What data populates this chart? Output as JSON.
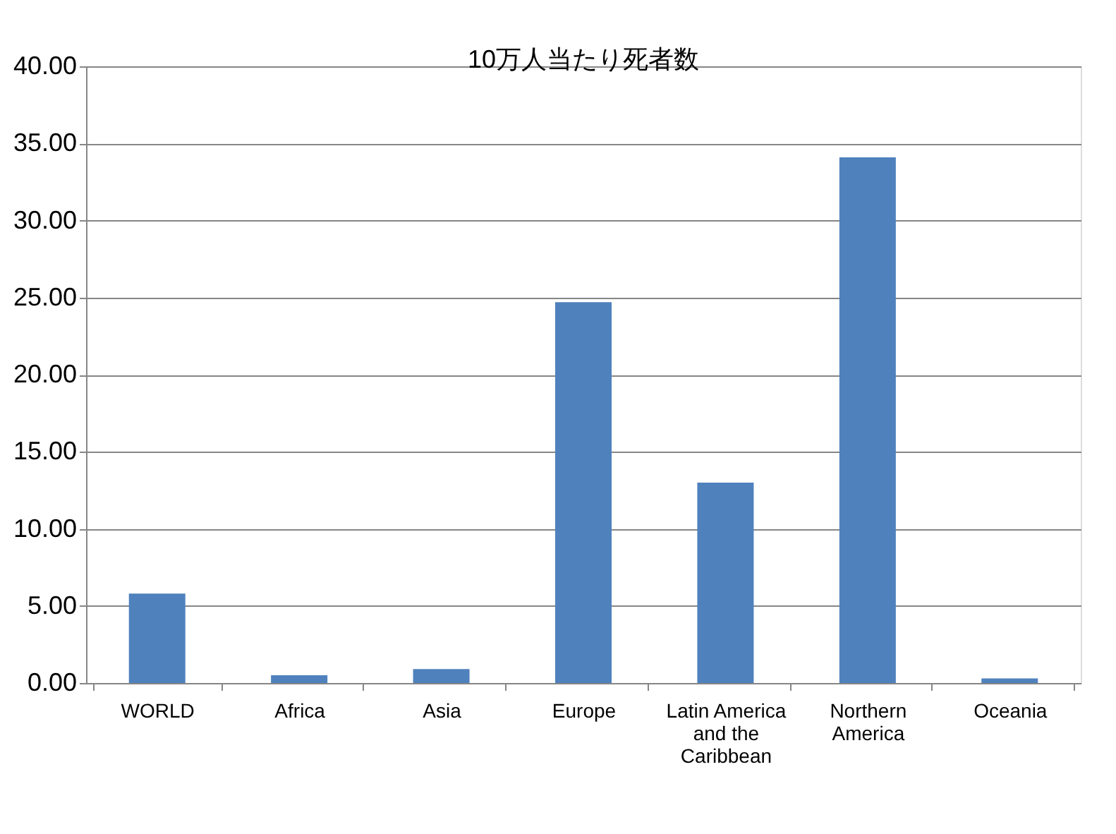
{
  "chart_data": {
    "type": "bar",
    "title": "10万人当たり死者数",
    "categories": [
      "WORLD",
      "Africa",
      "Asia",
      "Europe",
      "Latin America and the Caribbean",
      "Northern America",
      "Oceania"
    ],
    "values": [
      5.8,
      0.5,
      0.9,
      24.7,
      13.0,
      34.1,
      0.3
    ],
    "color": "#4f81bd",
    "ylim": [
      0,
      40
    ],
    "yticks": [
      {
        "value": 0,
        "label": "0.00"
      },
      {
        "value": 5,
        "label": "5.00"
      },
      {
        "value": 10,
        "label": "10.00"
      },
      {
        "value": 15,
        "label": "15.00"
      },
      {
        "value": 20,
        "label": "20.00"
      },
      {
        "value": 25,
        "label": "25.00"
      },
      {
        "value": 30,
        "label": "30.00"
      },
      {
        "value": 35,
        "label": "35.00"
      },
      {
        "value": 40,
        "label": "40.00"
      }
    ],
    "grid": "y"
  }
}
